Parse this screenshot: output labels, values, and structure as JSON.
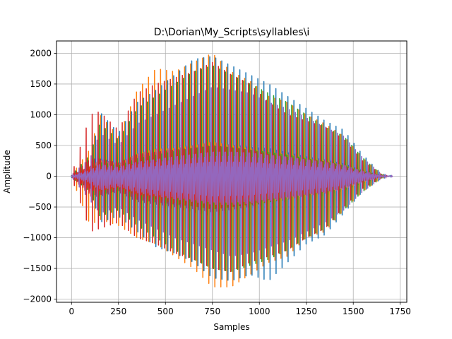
{
  "chart_data": {
    "type": "line",
    "title": "D:\\Dorian\\My_Scripts\\syllables\\i",
    "xlabel": "Samples",
    "ylabel": "Amplitude",
    "xlim": [
      -80,
      1785
    ],
    "ylim": [
      -2050,
      2200
    ],
    "x_ticks": [
      0,
      250,
      500,
      750,
      1000,
      1250,
      1500,
      1750
    ],
    "x_tick_labels": [
      "0",
      "250",
      "500",
      "750",
      "1000",
      "1250",
      "1500",
      "1750"
    ],
    "y_ticks": [
      -2000,
      -1500,
      -1000,
      -500,
      0,
      500,
      1000,
      1500,
      2000
    ],
    "y_tick_labels": [
      "−2000",
      "−1500",
      "−1000",
      "−500",
      "0",
      "500",
      "1000",
      "1500",
      "2000"
    ],
    "grid": true,
    "legend": "none",
    "waveform_period": 32,
    "series": [
      {
        "color": "#1f77b4",
        "offset": 0,
        "x_range": [
          0,
          1700
        ],
        "envelope_x": [
          0,
          100,
          150,
          250,
          350,
          450,
          550,
          650,
          750,
          850,
          950,
          1050,
          1150,
          1250,
          1350,
          1450,
          1550,
          1650,
          1700
        ],
        "envelope_pos": [
          20,
          150,
          1050,
          700,
          1200,
          1400,
          1650,
          1900,
          1950,
          1800,
          1650,
          1500,
          1300,
          1100,
          900,
          750,
          350,
          40,
          10
        ],
        "envelope_neg": [
          -20,
          -200,
          -750,
          -650,
          -900,
          -1150,
          -1250,
          -1400,
          -1650,
          -1700,
          -1600,
          -1700,
          -1400,
          -1100,
          -950,
          -600,
          -250,
          -40,
          -10
        ]
      },
      {
        "color": "#ff7f0e",
        "offset": 6,
        "x_range": [
          0,
          1680
        ],
        "envelope_x": [
          0,
          100,
          150,
          250,
          350,
          450,
          550,
          650,
          750,
          850,
          950,
          1050,
          1150,
          1250,
          1350,
          1450,
          1550,
          1650,
          1680
        ],
        "envelope_pos": [
          20,
          450,
          1000,
          650,
          1400,
          1750,
          1700,
          1850,
          2000,
          1700,
          1550,
          1300,
          1200,
          1000,
          850,
          650,
          300,
          30,
          10
        ],
        "envelope_neg": [
          -20,
          -800,
          -700,
          -800,
          -1000,
          -1100,
          -1300,
          -1500,
          -1800,
          -1800,
          -1600,
          -1400,
          -1300,
          -1000,
          -900,
          -550,
          -250,
          -30,
          -10
        ]
      },
      {
        "color": "#2ca02c",
        "offset": 12,
        "x_range": [
          0,
          1680
        ],
        "envelope_x": [
          0,
          100,
          150,
          250,
          350,
          450,
          550,
          650,
          750,
          850,
          950,
          1050,
          1150,
          1250,
          1350,
          1450,
          1550,
          1650,
          1680
        ],
        "envelope_pos": [
          20,
          350,
          850,
          600,
          1100,
          1300,
          1500,
          1700,
          1800,
          1650,
          1500,
          1350,
          1200,
          1000,
          800,
          650,
          300,
          30,
          10
        ],
        "envelope_neg": [
          -20,
          -250,
          -650,
          -550,
          -800,
          -1000,
          -1200,
          -1350,
          -1500,
          -1550,
          -1450,
          -1350,
          -1200,
          -1000,
          -850,
          -550,
          -250,
          -30,
          -10
        ]
      },
      {
        "color": "#d62728",
        "offset": 18,
        "x_range": [
          0,
          1680
        ],
        "envelope_x": [
          0,
          100,
          150,
          250,
          350,
          450,
          550,
          650,
          750,
          850,
          950,
          1050,
          1150,
          1250,
          1350,
          1450,
          1550,
          1650,
          1680
        ],
        "envelope_pos": [
          20,
          1000,
          1050,
          750,
          1350,
          1500,
          1600,
          1700,
          1850,
          1650,
          1500,
          1200,
          1000,
          900,
          800,
          600,
          250,
          30,
          10
        ],
        "envelope_neg": [
          -20,
          -900,
          -850,
          -750,
          -1000,
          -1100,
          -1250,
          -1350,
          -1500,
          -1550,
          -1400,
          -1300,
          -1200,
          -1000,
          -850,
          -500,
          -200,
          -30,
          -10
        ]
      },
      {
        "color": "#9467bd",
        "offset": 24,
        "x_range": [
          0,
          1710
        ],
        "envelope_x": [
          0,
          100,
          150,
          250,
          350,
          450,
          550,
          650,
          750,
          850,
          950,
          1050,
          1150,
          1250,
          1350,
          1450,
          1550,
          1650,
          1710
        ],
        "envelope_pos": [
          20,
          300,
          700,
          500,
          850,
          1000,
          1150,
          1300,
          1450,
          1400,
          1350,
          1200,
          1100,
          950,
          800,
          650,
          300,
          40,
          10
        ],
        "envelope_neg": [
          -20,
          -400,
          -600,
          -500,
          -700,
          -850,
          -1000,
          -1100,
          -1200,
          -1300,
          -1250,
          -1150,
          -1050,
          -900,
          -750,
          -550,
          -250,
          -40,
          -10
        ]
      }
    ]
  }
}
